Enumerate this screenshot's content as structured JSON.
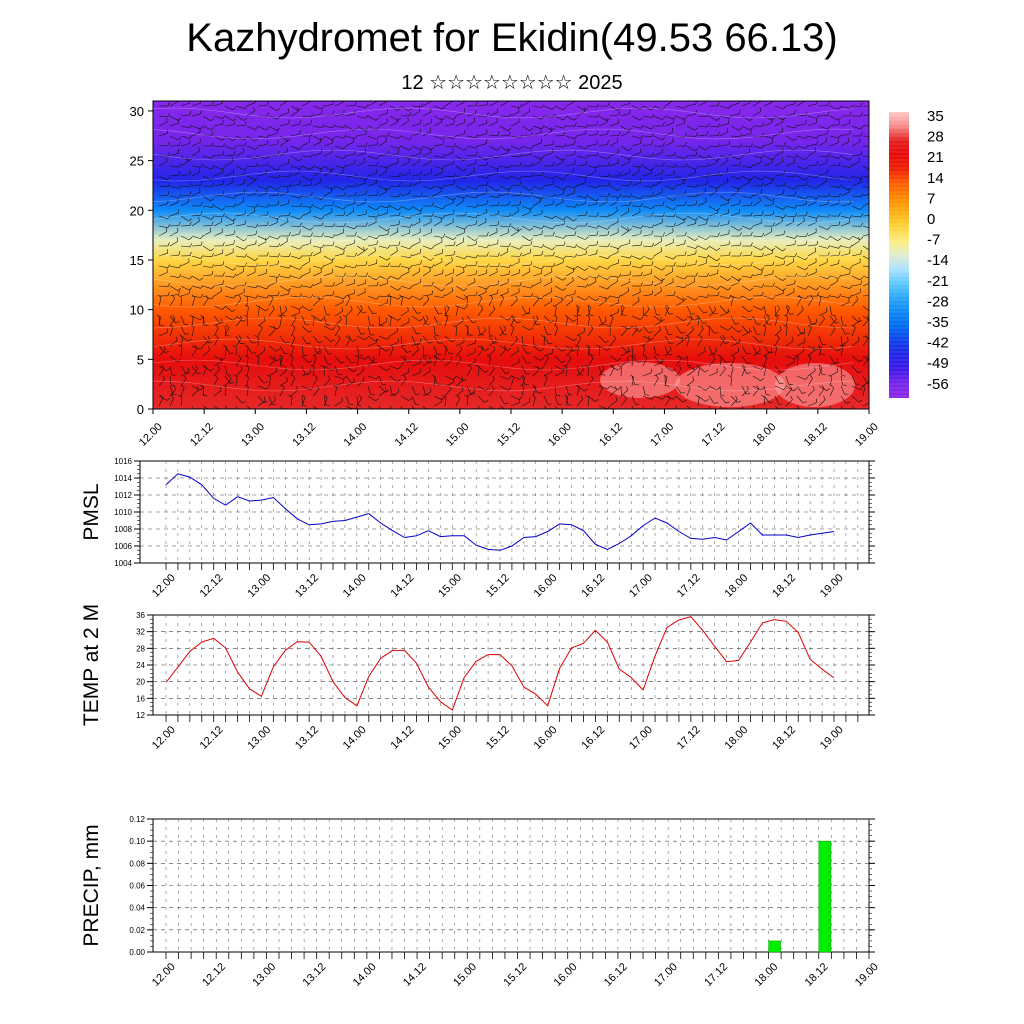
{
  "header": {
    "title": "Kazhydromet for Ekidin(49.53 66.13)",
    "subtitle": "12 ☆☆☆☆☆☆☆☆ 2025"
  },
  "time_labels": [
    "12.00",
    "12.12",
    "13.00",
    "13.12",
    "14.00",
    "14.12",
    "15.00",
    "15.12",
    "16.00",
    "16.12",
    "17.00",
    "17.12",
    "18.00",
    "18.12",
    "19.00"
  ],
  "chart_data": [
    {
      "type": "heatmap",
      "title": "",
      "x": [
        "12.00",
        "12.12",
        "13.00",
        "13.12",
        "14.00",
        "14.12",
        "15.00",
        "15.12",
        "16.00",
        "16.12",
        "17.00",
        "17.12",
        "18.00",
        "18.12",
        "19.00"
      ],
      "y_ticks": [
        0,
        5,
        10,
        15,
        20,
        25,
        30
      ],
      "ylim": [
        0,
        31
      ],
      "colorbar_levels": [
        35,
        28,
        21,
        14,
        7,
        0,
        -7,
        -14,
        -21,
        -28,
        -35,
        -42,
        -49,
        -56
      ],
      "profile": [
        {
          "level": 0,
          "value": 30
        },
        {
          "level": 5,
          "value": 24
        },
        {
          "level": 10,
          "value": 14
        },
        {
          "level": 15,
          "value": -2
        },
        {
          "level": 17,
          "value": -10
        },
        {
          "level": 20,
          "value": -30
        },
        {
          "level": 23,
          "value": -45
        },
        {
          "level": 27,
          "value": -55
        },
        {
          "level": 31,
          "value": -58
        }
      ],
      "wind_barbs": true,
      "colors": {
        "warm": "#e00000",
        "cool": "#1a1aff"
      }
    },
    {
      "type": "line",
      "ylabel": "PMSL",
      "y_ticks": [
        1004,
        1006,
        1008,
        1010,
        1012,
        1014,
        1016
      ],
      "ylim": [
        1004,
        1016
      ],
      "x_step_hours": 3,
      "series": [
        {
          "color": "#0000cc",
          "values": [
            1013.2,
            1014.5,
            1014.1,
            1013.2,
            1011.6,
            1010.8,
            1011.8,
            1011.3,
            1011.4,
            1011.7,
            1010.4,
            1009.2,
            1008.5,
            1008.6,
            1008.9,
            1009.0,
            1009.4,
            1009.8,
            1008.7,
            1007.8,
            1007.0,
            1007.2,
            1007.8,
            1007.1,
            1007.2,
            1007.2,
            1006.1,
            1005.6,
            1005.5,
            1006.0,
            1007.0,
            1007.1,
            1007.7,
            1008.6,
            1008.5,
            1007.8,
            1006.2,
            1005.6,
            1006.3,
            1007.2,
            1008.4,
            1009.3,
            1008.7,
            1007.7,
            1006.9,
            1006.8,
            1007.0,
            1006.7,
            1007.7,
            1008.7,
            1007.3,
            1007.3,
            1007.3,
            1007.0,
            1007.3,
            1007.5,
            1007.7
          ]
        }
      ]
    },
    {
      "type": "line",
      "ylabel": "TEMP at 2 M",
      "y_ticks": [
        12,
        16,
        20,
        24,
        28,
        32,
        36
      ],
      "ylim": [
        12,
        36
      ],
      "x_step_hours": 3,
      "series": [
        {
          "color": "#dd0000",
          "values": [
            19.8,
            23.5,
            27.3,
            29.5,
            30.4,
            28.1,
            22.3,
            18.3,
            16.5,
            23.6,
            27.5,
            29.6,
            29.5,
            26.1,
            20.0,
            16.2,
            14.2,
            21.3,
            25.6,
            27.5,
            27.5,
            24.4,
            18.7,
            15.2,
            13.2,
            21.0,
            24.9,
            26.5,
            26.5,
            23.8,
            18.7,
            17.0,
            14.2,
            23.2,
            28.1,
            29.2,
            32.3,
            29.5,
            23.0,
            21.0,
            18.0,
            26.2,
            33.0,
            34.8,
            35.6,
            32.3,
            28.5,
            24.8,
            25.1,
            29.5,
            34.1,
            34.9,
            34.5,
            31.8,
            25.4,
            23.0,
            20.9
          ]
        }
      ]
    },
    {
      "type": "bar",
      "ylabel": "PRECIP, mm",
      "y_ticks": [
        0.0,
        0.02,
        0.04,
        0.06,
        0.08,
        0.1,
        0.12
      ],
      "ylim": [
        0,
        0.12
      ],
      "bars": [
        {
          "x": "18.00",
          "value": 0.01
        },
        {
          "x": "18.12",
          "value": 0.1
        }
      ],
      "color": "#00ee00"
    }
  ]
}
